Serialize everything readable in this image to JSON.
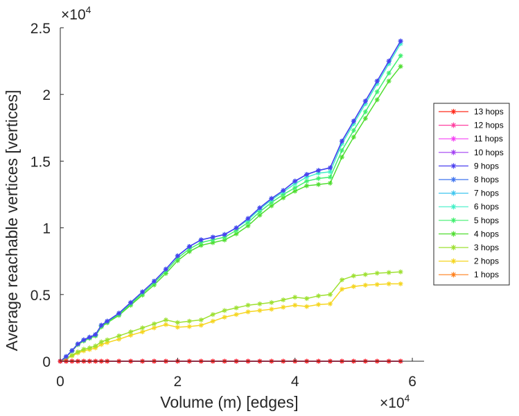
{
  "chart_data": {
    "type": "line",
    "title": "",
    "xlabel": "Volume (m) [edges]",
    "ylabel": "Average reachable vertices [vertices]",
    "xlim": [
      0,
      62000
    ],
    "ylim": [
      0,
      25000
    ],
    "x_exponent_label": "×10",
    "x_exponent_power": "4",
    "y_exponent_label": "×10",
    "y_exponent_power": "4",
    "x_ticks": [
      {
        "value": 0,
        "label": "0"
      },
      {
        "value": 20000,
        "label": "2"
      },
      {
        "value": 40000,
        "label": "4"
      },
      {
        "value": 60000,
        "label": "6"
      }
    ],
    "y_ticks": [
      {
        "value": 0,
        "label": "0"
      },
      {
        "value": 5000,
        "label": "0.5"
      },
      {
        "value": 10000,
        "label": "1"
      },
      {
        "value": 15000,
        "label": "1.5"
      },
      {
        "value": 20000,
        "label": "2"
      },
      {
        "value": 25000,
        "label": "2.5"
      }
    ],
    "legend_position": "right",
    "marker": "*",
    "x": [
      0,
      1000,
      2000,
      3000,
      4000,
      5000,
      6000,
      7000,
      8000,
      10000,
      12000,
      14000,
      16000,
      18000,
      20000,
      22000,
      24000,
      26000,
      28000,
      30000,
      32000,
      34000,
      36000,
      38000,
      40000,
      42000,
      44000,
      46000,
      48000,
      50000,
      52000,
      54000,
      56000,
      58000
    ],
    "series": [
      {
        "name": "13 hops",
        "color": "#ff2a1a",
        "values": [
          0,
          0,
          0,
          0,
          0,
          0,
          0,
          0,
          0,
          0,
          0,
          0,
          0,
          0,
          0,
          0,
          0,
          0,
          0,
          0,
          0,
          0,
          0,
          0,
          0,
          0,
          0,
          0,
          0,
          0,
          0,
          0,
          0,
          0
        ]
      },
      {
        "name": "12 hops",
        "color": "#ff3fa0",
        "values": [
          0,
          0,
          0,
          0,
          0,
          0,
          0,
          0,
          0,
          0,
          0,
          0,
          0,
          0,
          0,
          0,
          0,
          0,
          0,
          0,
          0,
          0,
          0,
          0,
          0,
          0,
          0,
          0,
          0,
          0,
          0,
          0,
          0,
          0
        ]
      },
      {
        "name": "11 hops",
        "color": "#f53ff5",
        "values": [
          0,
          0,
          0,
          0,
          0,
          0,
          0,
          0,
          0,
          0,
          0,
          0,
          0,
          0,
          0,
          0,
          0,
          0,
          0,
          0,
          0,
          0,
          0,
          0,
          0,
          0,
          0,
          0,
          0,
          0,
          0,
          0,
          0,
          0
        ]
      },
      {
        "name": "10 hops",
        "color": "#a23ff2",
        "values": [
          0,
          0,
          0,
          0,
          0,
          0,
          0,
          0,
          0,
          0,
          0,
          0,
          0,
          0,
          0,
          0,
          0,
          0,
          0,
          0,
          0,
          0,
          0,
          0,
          0,
          0,
          0,
          0,
          0,
          0,
          0,
          0,
          0,
          0
        ]
      },
      {
        "name": "9 hops",
        "color": "#4a3fef",
        "values": [
          0,
          350,
          800,
          1300,
          1600,
          1800,
          2000,
          2700,
          3000,
          3600,
          4400,
          5200,
          6000,
          6900,
          7900,
          8600,
          9100,
          9300,
          9500,
          10000,
          10700,
          11500,
          12200,
          12800,
          13500,
          14000,
          14300,
          14500,
          16500,
          18000,
          19500,
          21000,
          22500,
          24000
        ]
      },
      {
        "name": "8 hops",
        "color": "#3f74ef",
        "values": [
          0,
          350,
          800,
          1300,
          1600,
          1800,
          2000,
          2700,
          3000,
          3600,
          4400,
          5200,
          6000,
          6900,
          7900,
          8600,
          9100,
          9300,
          9500,
          10000,
          10700,
          11500,
          12200,
          12800,
          13500,
          14000,
          14300,
          14500,
          16500,
          18000,
          19500,
          21000,
          22500,
          24000
        ]
      },
      {
        "name": "7 hops",
        "color": "#3fc6ef",
        "values": [
          0,
          350,
          800,
          1300,
          1600,
          1800,
          2000,
          2700,
          3000,
          3600,
          4400,
          5200,
          6000,
          6900,
          7900,
          8600,
          9100,
          9300,
          9500,
          10000,
          10700,
          11500,
          12200,
          12800,
          13500,
          14000,
          14300,
          14500,
          16500,
          18000,
          19500,
          21000,
          22500,
          24000
        ]
      },
      {
        "name": "6 hops",
        "color": "#3fefc6",
        "values": [
          0,
          350,
          800,
          1300,
          1600,
          1800,
          2000,
          2700,
          3000,
          3600,
          4400,
          5200,
          6000,
          6900,
          7900,
          8600,
          9100,
          9300,
          9500,
          10000,
          10600,
          11400,
          12100,
          12700,
          13300,
          13800,
          14100,
          14200,
          16300,
          17800,
          19300,
          20800,
          22300,
          23800
        ]
      },
      {
        "name": "5 hops",
        "color": "#3fef6e",
        "values": [
          0,
          340,
          780,
          1270,
          1560,
          1760,
          1950,
          2640,
          2950,
          3520,
          4300,
          5080,
          5870,
          6750,
          7730,
          8420,
          8900,
          9100,
          9300,
          9800,
          10400,
          11200,
          11900,
          12500,
          13000,
          13500,
          13700,
          13800,
          15800,
          17300,
          18700,
          20200,
          21600,
          22900
        ]
      },
      {
        "name": "4 hops",
        "color": "#4fdd2f",
        "values": [
          0,
          330,
          760,
          1240,
          1520,
          1720,
          1900,
          2580,
          2880,
          3440,
          4200,
          4960,
          5720,
          6580,
          7540,
          8220,
          8690,
          8890,
          9090,
          9550,
          10150,
          10950,
          11650,
          12250,
          12750,
          13150,
          13250,
          13350,
          15300,
          16800,
          18200,
          19600,
          21000,
          22100
        ]
      },
      {
        "name": "3 hops",
        "color": "#9de030",
        "values": [
          0,
          200,
          450,
          700,
          900,
          1000,
          1150,
          1450,
          1600,
          1900,
          2200,
          2500,
          2800,
          3100,
          2900,
          3000,
          3100,
          3500,
          3800,
          4000,
          4200,
          4300,
          4400,
          4600,
          4800,
          4700,
          4900,
          5000,
          6100,
          6400,
          6500,
          6600,
          6650,
          6700
        ]
      },
      {
        "name": "2 hops",
        "color": "#f5d51f",
        "values": [
          0,
          180,
          400,
          620,
          780,
          880,
          1000,
          1250,
          1400,
          1650,
          1950,
          2200,
          2500,
          2750,
          2550,
          2600,
          2700,
          3000,
          3300,
          3500,
          3700,
          3800,
          3900,
          4050,
          4200,
          4100,
          4250,
          4300,
          5400,
          5600,
          5700,
          5750,
          5800,
          5800
        ]
      },
      {
        "name": "1 hops",
        "color": "#ff7f1a",
        "values": [
          0,
          0,
          0,
          0,
          0,
          0,
          0,
          0,
          0,
          0,
          0,
          0,
          0,
          0,
          0,
          0,
          0,
          0,
          0,
          0,
          0,
          0,
          0,
          0,
          0,
          0,
          0,
          0,
          0,
          0,
          0,
          0,
          0,
          0
        ]
      }
    ]
  }
}
